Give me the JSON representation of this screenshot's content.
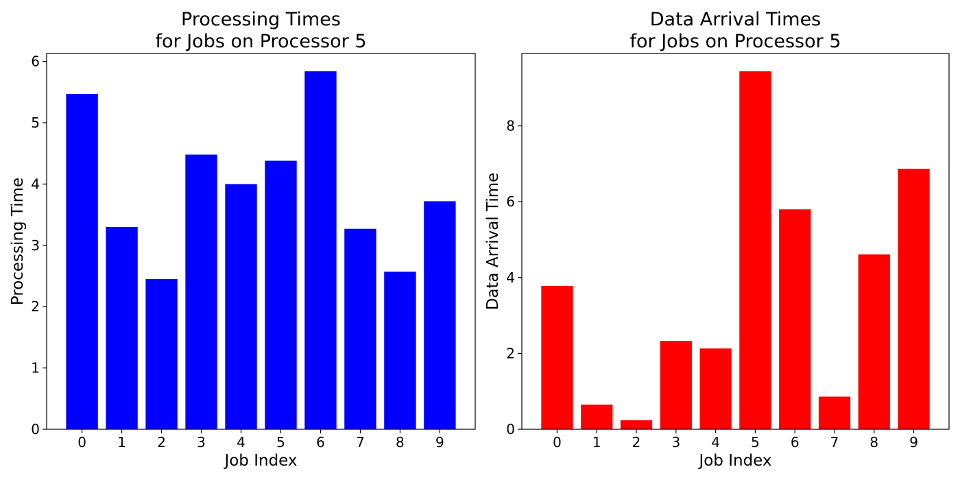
{
  "chart_data": [
    {
      "type": "bar",
      "title_lines": [
        "Processing Times",
        "for Jobs on Processor 5"
      ],
      "xlabel": "Job Index",
      "ylabel": "Processing Time",
      "categories": [
        "0",
        "1",
        "2",
        "3",
        "4",
        "5",
        "6",
        "7",
        "8",
        "9"
      ],
      "values": [
        5.47,
        3.3,
        2.45,
        4.48,
        4.0,
        4.38,
        5.84,
        3.27,
        2.57,
        3.72
      ],
      "color": "#0000ff",
      "ylim": [
        0,
        6.13
      ],
      "yticks": [
        0,
        1,
        2,
        3,
        4,
        5,
        6
      ],
      "grid": false,
      "legend": "none"
    },
    {
      "type": "bar",
      "title_lines": [
        "Data Arrival Times",
        "for Jobs on Processor 5"
      ],
      "xlabel": "Job Index",
      "ylabel": "Data Arrival Time",
      "categories": [
        "0",
        "1",
        "2",
        "3",
        "4",
        "5",
        "6",
        "7",
        "8",
        "9"
      ],
      "values": [
        3.78,
        0.65,
        0.24,
        2.33,
        2.13,
        9.44,
        5.8,
        0.86,
        4.61,
        6.87
      ],
      "color": "#ff0000",
      "ylim": [
        0,
        9.91
      ],
      "yticks": [
        0,
        2,
        4,
        6,
        8
      ],
      "grid": false,
      "legend": "none"
    }
  ]
}
